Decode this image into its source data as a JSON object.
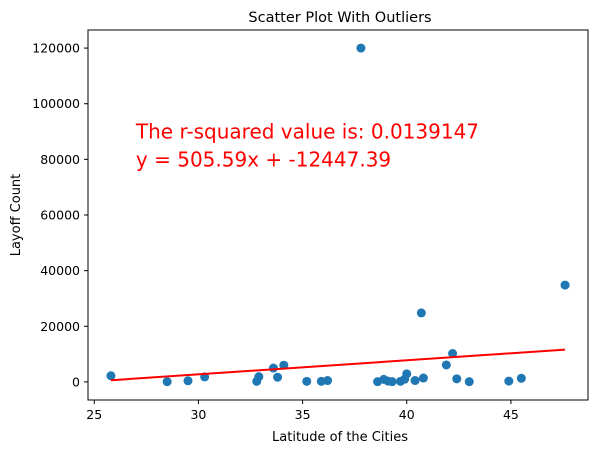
{
  "chart_data": {
    "type": "scatter",
    "title": "Scatter Plot With Outliers",
    "xlabel": "Latitude of the Cities",
    "ylabel": "Layoff Count",
    "xlim": [
      24.7,
      48.7
    ],
    "ylim": [
      -6500,
      126500
    ],
    "xticks": [
      25,
      30,
      35,
      40,
      45
    ],
    "yticks": [
      0,
      20000,
      40000,
      60000,
      80000,
      100000,
      120000
    ],
    "grid": false,
    "colors": {
      "points": "#1f77b4",
      "regression": "#ff0000",
      "annotation": "#ff0000"
    },
    "points": [
      [
        25.8,
        2200
      ],
      [
        28.5,
        100
      ],
      [
        29.5,
        400
      ],
      [
        30.3,
        1800
      ],
      [
        32.8,
        200
      ],
      [
        32.9,
        1900
      ],
      [
        33.6,
        5000
      ],
      [
        33.8,
        1700
      ],
      [
        34.1,
        6000
      ],
      [
        35.2,
        200
      ],
      [
        35.9,
        200
      ],
      [
        36.2,
        500
      ],
      [
        37.8,
        120000
      ],
      [
        38.6,
        100
      ],
      [
        38.9,
        900
      ],
      [
        39.1,
        300
      ],
      [
        39.3,
        100
      ],
      [
        39.7,
        200
      ],
      [
        39.9,
        1000
      ],
      [
        40.0,
        2900
      ],
      [
        40.4,
        500
      ],
      [
        40.7,
        24800
      ],
      [
        40.8,
        1400
      ],
      [
        41.9,
        6100
      ],
      [
        42.2,
        10200
      ],
      [
        42.4,
        1100
      ],
      [
        43.0,
        100
      ],
      [
        44.9,
        300
      ],
      [
        45.5,
        1300
      ],
      [
        47.6,
        34800
      ]
    ],
    "regression": {
      "slope": 505.59,
      "intercept": -12447.39,
      "x_range": [
        25.8,
        47.6
      ]
    },
    "annotation": {
      "line1": "The r-squared value is: 0.0139147",
      "line2": "y = 505.59x + -12447.39",
      "x": 27,
      "y1": 90000,
      "y2": 80000
    }
  }
}
